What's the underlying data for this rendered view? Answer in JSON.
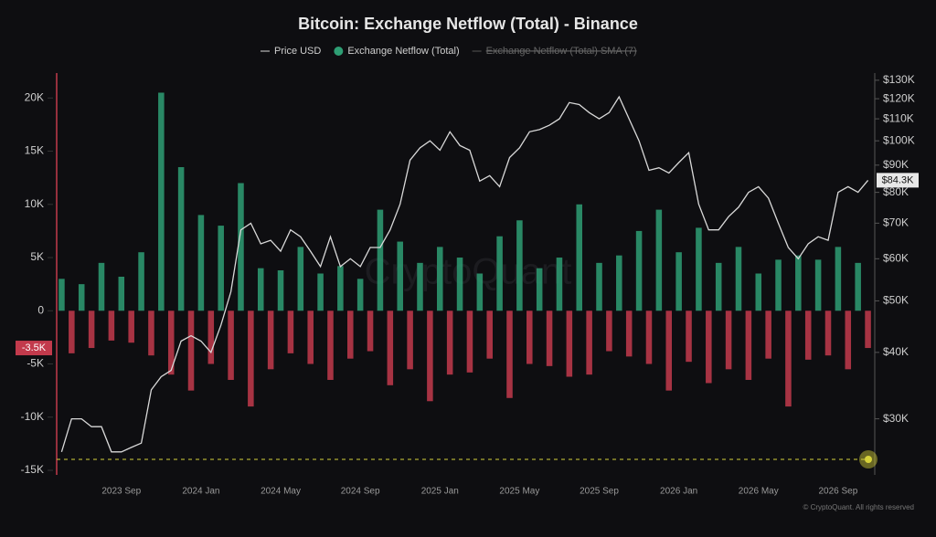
{
  "chart_data": {
    "type": "bar-line",
    "title": "Bitcoin: Exchange Netflow (Total) - Binance",
    "watermark": "CryptoQuant",
    "source": "© CryptoQuant. All rights reserved",
    "legend_hidden": "Exchange Netflow (Total) SMA (7)",
    "categories": [
      null,
      null,
      null,
      null,
      null,
      null,
      "2023 Sep",
      null,
      null,
      null,
      null,
      null,
      null,
      null,
      "2024 Jan",
      null,
      null,
      null,
      null,
      null,
      null,
      null,
      "2024 May",
      null,
      null,
      null,
      null,
      null,
      null,
      null,
      "2024 Sep",
      null,
      null,
      null,
      null,
      null,
      null,
      null,
      "2025 Jan",
      null,
      null,
      null,
      null,
      null,
      null,
      null,
      "2025 May",
      null,
      null,
      null,
      null,
      null,
      null,
      null,
      "2025 Sep",
      null,
      null,
      null,
      null,
      null,
      null,
      null,
      "2026 Jan",
      null,
      null,
      null,
      null,
      null,
      null,
      null,
      "2026 May",
      null,
      null,
      null,
      null,
      null,
      null,
      null,
      "2026 Sep",
      null,
      null,
      null
    ],
    "series": [
      {
        "name": "Price USD",
        "color": "#d9d9d9",
        "axis": "y2",
        "values": [
          26000,
          30000,
          30000,
          29000,
          29000,
          26000,
          26000,
          26500,
          27000,
          34000,
          36000,
          37000,
          42000,
          43000,
          42000,
          40000,
          45000,
          52000,
          68000,
          70000,
          64000,
          65000,
          62000,
          68000,
          66000,
          62000,
          58000,
          66000,
          58000,
          60000,
          58000,
          63000,
          63000,
          68000,
          76000,
          92000,
          97000,
          100000,
          96000,
          104000,
          98000,
          96000,
          84000,
          86000,
          82000,
          93000,
          97000,
          104000,
          105000,
          107000,
          110000,
          118000,
          117000,
          113000,
          110000,
          113000,
          121000,
          110000,
          100000,
          88000,
          89000,
          87000,
          91000,
          95000,
          76000,
          68000,
          68000,
          72000,
          75000,
          80000,
          82000,
          78000,
          70000,
          63000,
          60000,
          64000,
          66000,
          65000,
          80000,
          82000,
          80000,
          84300
        ]
      },
      {
        "name": "Exchange Netflow (Total)",
        "color": "#2e9e74",
        "negative_color": "#c23a4c",
        "values": [
          3000,
          -4000,
          2500,
          -3500,
          4500,
          -2800,
          3200,
          -3000,
          5500,
          -4200,
          20500,
          -6000,
          13500,
          -7500,
          9000,
          -5000,
          8000,
          -6500,
          12000,
          -9000,
          4000,
          -5500,
          3800,
          -4000,
          6000,
          -5000,
          3500,
          -6500,
          4200,
          -4500,
          3000,
          -3800,
          9500,
          -7000,
          6500,
          -5500,
          4500,
          -8500,
          6000,
          -6000,
          5000,
          -5800,
          3500,
          -4500,
          7000,
          -8200,
          8500,
          -5000,
          4000,
          -5200,
          5000,
          -6200,
          10000,
          -6000,
          4500,
          -3800,
          5200,
          -4300,
          7500,
          -5000,
          9500,
          -7500,
          5500,
          -4800,
          7800,
          -6800,
          4500,
          -5500,
          6000,
          -6500,
          3500,
          -4500,
          4800,
          -9000,
          5200,
          -4600,
          4800,
          -4200,
          6000,
          -5500,
          4500,
          -3500
        ]
      }
    ],
    "ylim": [
      -15000,
      22000
    ],
    "yticks": [
      {
        "value": -15000,
        "label": "-15K"
      },
      {
        "value": -10000,
        "label": "-10K"
      },
      {
        "value": -5000,
        "label": "-5K"
      },
      0,
      {
        "value": 5000,
        "label": "5K"
      },
      {
        "value": 10000,
        "label": "10K"
      },
      {
        "value": 15000,
        "label": "15K"
      },
      {
        "value": 20000,
        "label": "20K"
      }
    ],
    "y2lim": [
      24000,
      132000
    ],
    "y2log": true,
    "y2ticks": [
      {
        "value": 30000,
        "label": "$30K"
      },
      {
        "value": 40000,
        "label": "$40K"
      },
      {
        "value": 50000,
        "label": "$50K"
      },
      {
        "value": 60000,
        "label": "$60K"
      },
      {
        "value": 70000,
        "label": "$70K"
      },
      {
        "value": 80000,
        "label": "$80K"
      },
      {
        "value": 90000,
        "label": "$90K"
      },
      {
        "value": 100000,
        "label": "$100K"
      },
      {
        "value": 110000,
        "label": "$110K"
      },
      {
        "value": 120000,
        "label": "$120K"
      },
      {
        "value": 130000,
        "label": "$130K"
      }
    ],
    "annotations": [
      {
        "value": -3500,
        "label": "-3.5K",
        "axis": "y"
      },
      {
        "value": 84300,
        "label": "$84.3K",
        "axis": "y2"
      }
    ]
  }
}
